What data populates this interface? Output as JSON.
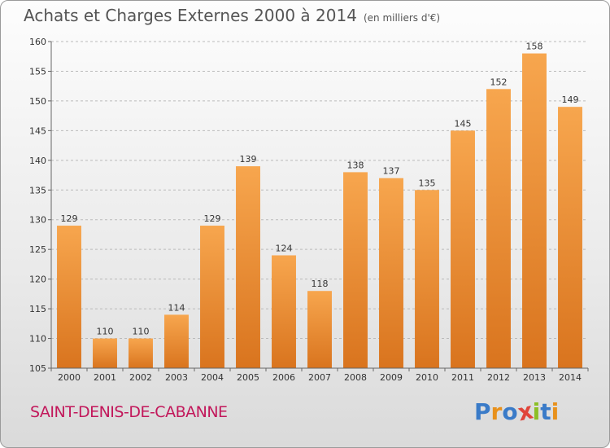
{
  "header": {
    "title": "Achats et Charges Externes 2000 à 2014",
    "unit": "(en milliers d'€)"
  },
  "footer": {
    "city": "SAINT-DENIS-DE-CABANNE",
    "logo": "Proxiti",
    "logo_letters": [
      {
        "char": "P",
        "color": "#3a7bc8"
      },
      {
        "char": "r",
        "color": "#e8911c"
      },
      {
        "char": "o",
        "color": "#3a7bc8"
      },
      {
        "char": "x",
        "color": "#e0453a"
      },
      {
        "char": "i",
        "color": "#8cbf26"
      },
      {
        "char": "t",
        "color": "#3a7bc8"
      },
      {
        "char": "i",
        "color": "#e8911c"
      }
    ]
  },
  "colors": {
    "bar_light": "#f7a64e",
    "bar_dark": "#d9741e",
    "grid": "#bbbbbb",
    "axis": "#666666",
    "city": "#c2185b"
  },
  "chart_data": {
    "type": "bar",
    "title": "Achats et Charges Externes 2000 à 2014",
    "subtitle": "(en milliers d'€)",
    "categories": [
      "2000",
      "2001",
      "2002",
      "2003",
      "2004",
      "2005",
      "2006",
      "2007",
      "2008",
      "2009",
      "2010",
      "2011",
      "2012",
      "2013",
      "2014"
    ],
    "values": [
      129,
      110,
      110,
      114,
      129,
      139,
      124,
      118,
      138,
      137,
      135,
      145,
      152,
      158,
      149
    ],
    "ylim": [
      105,
      160
    ],
    "yticks": [
      105,
      110,
      115,
      120,
      125,
      130,
      135,
      140,
      145,
      150,
      155,
      160
    ],
    "grid": "horizontal dashed",
    "data_labels": true
  }
}
